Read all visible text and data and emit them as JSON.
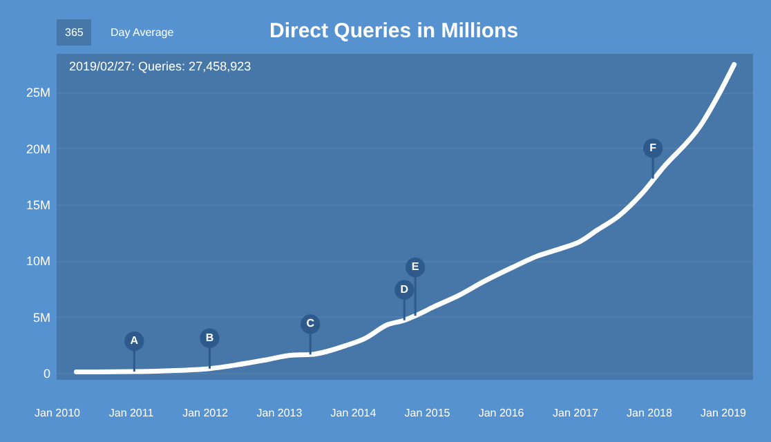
{
  "chart_data": {
    "type": "line",
    "title": "Direct Queries in Millions",
    "annotations": [
      "365",
      "Day Average",
      "2019/02/27: Queries: 27,458,923",
      {
        "text": "A",
        "x": "2011-01-19",
        "y": 0.13
      },
      {
        "text": "B",
        "x": "2012-01-26",
        "y": 0.4
      },
      {
        "text": "C",
        "x": "2013-06-06",
        "y": 1.65
      },
      {
        "text": "D",
        "x": "2014-09-13",
        "y": 4.7
      },
      {
        "text": "E",
        "x": "2014-11-06",
        "y": 5.1
      },
      {
        "text": "F",
        "x": "2018-01-22",
        "y": 17.3
      }
    ],
    "x": [
      "2010-04-08",
      "2011-01-19",
      "2011-06-18",
      "2012-01-26",
      "2012-06-14",
      "2012-11-06",
      "2013-03-07",
      "2013-06-06",
      "2013-11-28",
      "2014-03-04",
      "2014-06-21",
      "2014-09-13",
      "2014-11-06",
      "2015-02-06",
      "2015-06-18",
      "2015-10-05",
      "2016-02-28",
      "2016-06-28",
      "2016-10-27",
      "2017-01-26",
      "2017-04-20",
      "2017-08-08",
      "2017-11-25",
      "2018-03-14",
      "2018-09-13",
      "2018-12-16",
      "2019-02-27"
    ],
    "series": [
      {
        "color": "#ffffff",
        "values": [
          0.1,
          0.13,
          0.2,
          0.4,
          0.75,
          1.2,
          1.6,
          1.65,
          2.45,
          3.1,
          4.3,
          4.7,
          5.1,
          5.9,
          7.0,
          8.1,
          9.4,
          10.4,
          11.1,
          11.7,
          12.7,
          14.0,
          15.9,
          18.3,
          22.0,
          24.9,
          27.46
        ]
      }
    ],
    "xlim": [
      "2010-01-01",
      "2019-05-31"
    ],
    "xticks": [
      {
        "value": "2010-01-01",
        "label": "Jan 2010"
      },
      {
        "value": "2011-01-01",
        "label": "Jan 2011"
      },
      {
        "value": "2012-01-01",
        "label": "Jan 2012"
      },
      {
        "value": "2013-01-01",
        "label": "Jan 2013"
      },
      {
        "value": "2014-01-01",
        "label": "Jan 2014"
      },
      {
        "value": "2015-01-01",
        "label": "Jan 2015"
      },
      {
        "value": "2016-01-01",
        "label": "Jan 2016"
      },
      {
        "value": "2017-01-01",
        "label": "Jan 2017"
      },
      {
        "value": "2018-01-01",
        "label": "Jan 2018"
      },
      {
        "value": "2019-01-01",
        "label": "Jan 2019"
      }
    ],
    "ylim": [
      -0.6,
      28.4
    ],
    "yticks": [
      0,
      {
        "value": 5,
        "label": "5M"
      },
      {
        "value": 10,
        "label": "10M"
      },
      {
        "value": 15,
        "label": "15M"
      },
      {
        "value": 20,
        "label": "20M"
      },
      {
        "value": 25,
        "label": "25M"
      }
    ],
    "grid": "y",
    "marker": "none",
    "line_style": "solid"
  }
}
